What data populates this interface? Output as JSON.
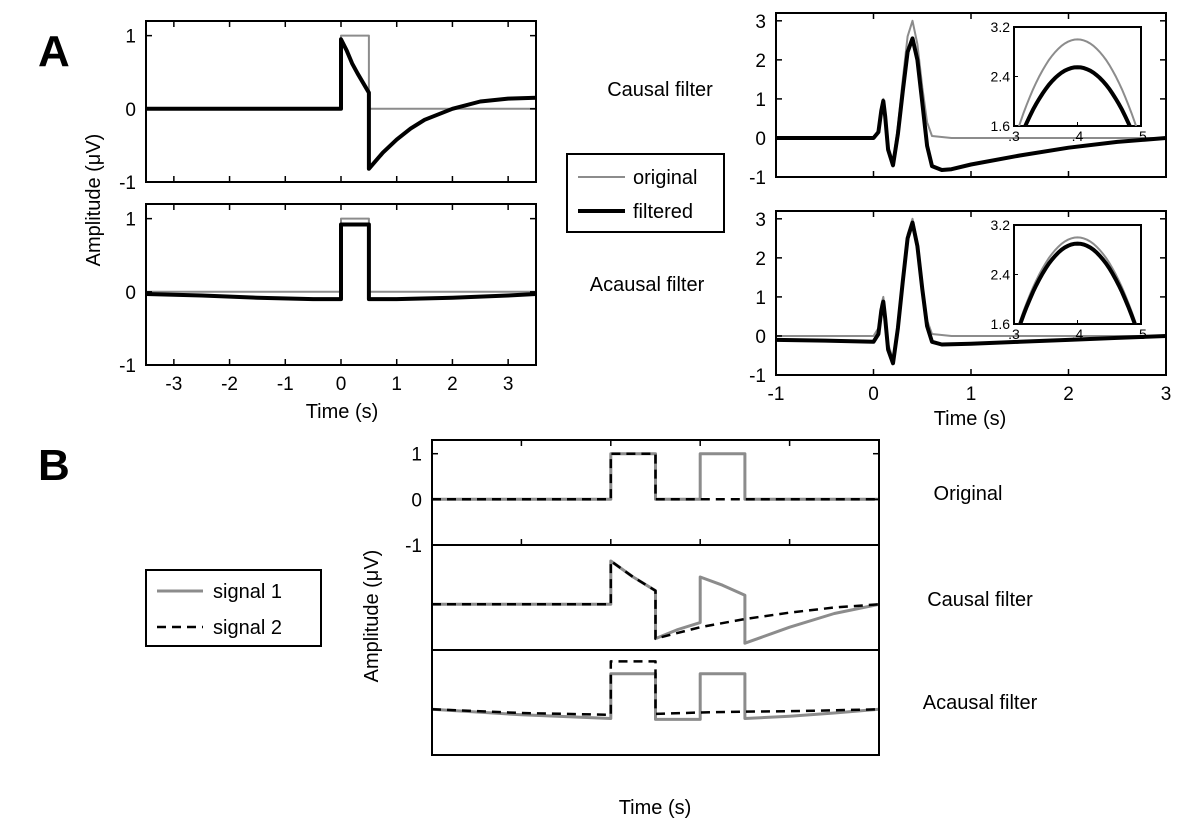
{
  "panels": {
    "a": "A",
    "b": "B"
  },
  "panel_a": {
    "ylabel": "Amplitude (μV)",
    "xlabel_left": "Time (s)",
    "xlabel_right": "Time (s)",
    "row_labels": [
      "Causal filter",
      "Acausal filter"
    ],
    "legend": [
      "original",
      "filtered"
    ]
  },
  "panel_b": {
    "ylabel": "Amplitude (μV)",
    "xlabel": "Time (s)",
    "row_labels": [
      "Original",
      "Causal filter",
      "Acausal filter"
    ],
    "legend": [
      "signal 1",
      "signal 2"
    ]
  },
  "colors": {
    "original": "#8c8c8c",
    "filtered": "#000000",
    "signal1": "#8c8c8c",
    "signal2": "#000000"
  },
  "chart_data": [
    {
      "id": "A_causal_step",
      "type": "line",
      "xlim": [
        -3.5,
        3.5
      ],
      "ylim": [
        -1,
        1.2
      ],
      "xticks": [
        -3,
        -2,
        -1,
        0,
        1,
        2,
        3
      ],
      "yticks": [
        -1,
        0,
        1
      ],
      "series": [
        {
          "name": "original",
          "x": [
            -3.5,
            0,
            0,
            0.5,
            0.5,
            3.5
          ],
          "y": [
            0,
            0,
            1,
            1,
            0,
            0
          ]
        },
        {
          "name": "filtered",
          "x": [
            -3.5,
            0,
            0,
            0.1,
            0.2,
            0.3,
            0.4,
            0.5,
            0.5,
            0.75,
            1,
            1.25,
            1.5,
            2,
            2.5,
            3,
            3.5
          ],
          "y": [
            0,
            0,
            0.95,
            0.8,
            0.62,
            0.48,
            0.35,
            0.22,
            -0.82,
            -0.6,
            -0.42,
            -0.27,
            -0.15,
            0.0,
            0.1,
            0.14,
            0.15
          ]
        }
      ]
    },
    {
      "id": "A_acausal_step",
      "type": "line",
      "xlim": [
        -3.5,
        3.5
      ],
      "ylim": [
        -1,
        1.2
      ],
      "xticks": [
        -3,
        -2,
        -1,
        0,
        1,
        2,
        3
      ],
      "yticks": [
        -1,
        0,
        1
      ],
      "series": [
        {
          "name": "original",
          "x": [
            -3.5,
            0,
            0,
            0.5,
            0.5,
            3.5
          ],
          "y": [
            0,
            0,
            1,
            1,
            0,
            0
          ]
        },
        {
          "name": "filtered",
          "x": [
            -3.5,
            -2.5,
            -1.5,
            -0.5,
            0,
            0,
            0.5,
            0.5,
            1,
            2,
            3,
            3.5
          ],
          "y": [
            -0.03,
            -0.05,
            -0.08,
            -0.1,
            -0.1,
            0.92,
            0.92,
            -0.1,
            -0.1,
            -0.08,
            -0.05,
            -0.03
          ]
        }
      ]
    },
    {
      "id": "A_causal_erp",
      "type": "line",
      "xlim": [
        -1,
        3
      ],
      "ylim": [
        -1,
        3.2
      ],
      "xticks": [
        -1,
        0,
        1,
        2,
        3
      ],
      "yticks": [
        -1,
        0,
        1,
        2,
        3
      ],
      "series": [
        {
          "name": "original",
          "x": [
            -1,
            0,
            0.05,
            0.08,
            0.1,
            0.12,
            0.15,
            0.2,
            0.25,
            0.3,
            0.35,
            0.4,
            0.45,
            0.5,
            0.55,
            0.6,
            0.8,
            3
          ],
          "y": [
            0,
            0,
            0.2,
            0.8,
            1.0,
            0.6,
            -0.2,
            -0.6,
            0.3,
            1.5,
            2.6,
            3.0,
            2.4,
            1.3,
            0.4,
            0.05,
            0,
            0
          ]
        },
        {
          "name": "filtered",
          "x": [
            -1,
            0,
            0.05,
            0.08,
            0.1,
            0.12,
            0.15,
            0.2,
            0.25,
            0.3,
            0.35,
            0.4,
            0.45,
            0.5,
            0.55,
            0.6,
            0.7,
            0.8,
            1,
            1.5,
            2,
            2.5,
            3
          ],
          "y": [
            0,
            0,
            0.15,
            0.7,
            0.95,
            0.55,
            -0.3,
            -0.7,
            0.1,
            1.2,
            2.2,
            2.55,
            2.0,
            0.9,
            -0.2,
            -0.72,
            -0.82,
            -0.8,
            -0.68,
            -0.45,
            -0.25,
            -0.1,
            0
          ]
        }
      ],
      "inset": {
        "xlim": [
          0.3,
          0.5
        ],
        "ylim": [
          1.6,
          3.2
        ],
        "xticks": [
          0.3,
          0.4,
          0.5
        ],
        "xtick_labels": [
          ".3",
          ".4",
          ".5"
        ],
        "yticks": [
          1.6,
          2.4,
          3.2
        ],
        "original_peak": 3.0,
        "filtered_peak": 2.55
      }
    },
    {
      "id": "A_acausal_erp",
      "type": "line",
      "xlim": [
        -1,
        3
      ],
      "ylim": [
        -1,
        3.2
      ],
      "xticks": [
        -1,
        0,
        1,
        2,
        3
      ],
      "yticks": [
        -1,
        0,
        1,
        2,
        3
      ],
      "series": [
        {
          "name": "original",
          "x": [
            -1,
            0,
            0.05,
            0.08,
            0.1,
            0.12,
            0.15,
            0.2,
            0.25,
            0.3,
            0.35,
            0.4,
            0.45,
            0.5,
            0.55,
            0.6,
            0.8,
            3
          ],
          "y": [
            0,
            0,
            0.2,
            0.8,
            1.0,
            0.6,
            -0.2,
            -0.6,
            0.3,
            1.5,
            2.6,
            3.0,
            2.4,
            1.3,
            0.4,
            0.05,
            0,
            0
          ]
        },
        {
          "name": "filtered",
          "x": [
            -1,
            -0.5,
            0,
            0.05,
            0.08,
            0.1,
            0.12,
            0.15,
            0.2,
            0.25,
            0.3,
            0.35,
            0.4,
            0.45,
            0.5,
            0.55,
            0.6,
            0.7,
            1,
            1.5,
            2,
            2.5,
            3
          ],
          "y": [
            -0.1,
            -0.12,
            -0.15,
            0.05,
            0.65,
            0.88,
            0.45,
            -0.35,
            -0.7,
            0.2,
            1.4,
            2.5,
            2.9,
            2.3,
            1.2,
            0.25,
            -0.15,
            -0.22,
            -0.2,
            -0.15,
            -0.1,
            -0.05,
            0
          ]
        }
      ],
      "inset": {
        "xlim": [
          0.3,
          0.5
        ],
        "ylim": [
          1.6,
          3.2
        ],
        "xticks": [
          0.3,
          0.4,
          0.5
        ],
        "xtick_labels": [
          ".3",
          ".4",
          ".5"
        ],
        "yticks": [
          1.6,
          2.4,
          3.2
        ],
        "original_peak": 3.0,
        "filtered_peak": 2.9
      }
    },
    {
      "id": "B_original",
      "type": "line",
      "xlim": [
        -2,
        3
      ],
      "ylim": [
        -1,
        1.3
      ],
      "xticks": [
        -2,
        -1,
        0,
        1,
        2,
        3
      ],
      "yticks": [
        -1,
        0,
        1
      ],
      "series": [
        {
          "name": "signal 1",
          "x": [
            -2,
            0,
            0,
            0.5,
            0.5,
            1,
            1,
            1.5,
            1.5,
            3
          ],
          "y": [
            0,
            0,
            1,
            1,
            0,
            0,
            1,
            1,
            0,
            0
          ]
        },
        {
          "name": "signal 2",
          "x": [
            -2,
            0,
            0,
            0.5,
            0.5,
            3
          ],
          "y": [
            0,
            0,
            1,
            1,
            0,
            0
          ]
        }
      ]
    },
    {
      "id": "B_causal",
      "type": "line",
      "xlim": [
        -2,
        3
      ],
      "ylim": [
        -1,
        1.3
      ],
      "series": [
        {
          "name": "signal 1",
          "x": [
            -2,
            0,
            0,
            0.25,
            0.5,
            0.5,
            0.75,
            1,
            1,
            1.25,
            1.5,
            1.5,
            2,
            2.5,
            3
          ],
          "y": [
            0,
            0,
            0.95,
            0.6,
            0.3,
            -0.75,
            -0.55,
            -0.4,
            0.6,
            0.42,
            0.2,
            -0.85,
            -0.5,
            -0.2,
            0
          ]
        },
        {
          "name": "signal 2",
          "x": [
            -2,
            0,
            0,
            0.25,
            0.5,
            0.5,
            1,
            1.5,
            2,
            2.5,
            3
          ],
          "y": [
            0,
            0,
            0.95,
            0.6,
            0.3,
            -0.75,
            -0.5,
            -0.32,
            -0.18,
            -0.07,
            0
          ]
        }
      ]
    },
    {
      "id": "B_acausal",
      "type": "line",
      "xlim": [
        -2,
        3
      ],
      "ylim": [
        -1,
        1.3
      ],
      "series": [
        {
          "name": "signal 1",
          "x": [
            -2,
            -1,
            0,
            0,
            0.5,
            0.5,
            1,
            1,
            1.5,
            1.5,
            2,
            2.5,
            3
          ],
          "y": [
            0,
            -0.12,
            -0.2,
            0.78,
            0.78,
            -0.22,
            -0.22,
            0.78,
            0.78,
            -0.2,
            -0.15,
            -0.08,
            0
          ]
        },
        {
          "name": "signal 2",
          "x": [
            -2,
            -1,
            0,
            0,
            0.5,
            0.5,
            1,
            1.5,
            2,
            2.5,
            3
          ],
          "y": [
            0,
            -0.08,
            -0.12,
            1.05,
            1.05,
            -0.1,
            -0.07,
            -0.05,
            -0.04,
            -0.02,
            0
          ]
        }
      ]
    }
  ]
}
